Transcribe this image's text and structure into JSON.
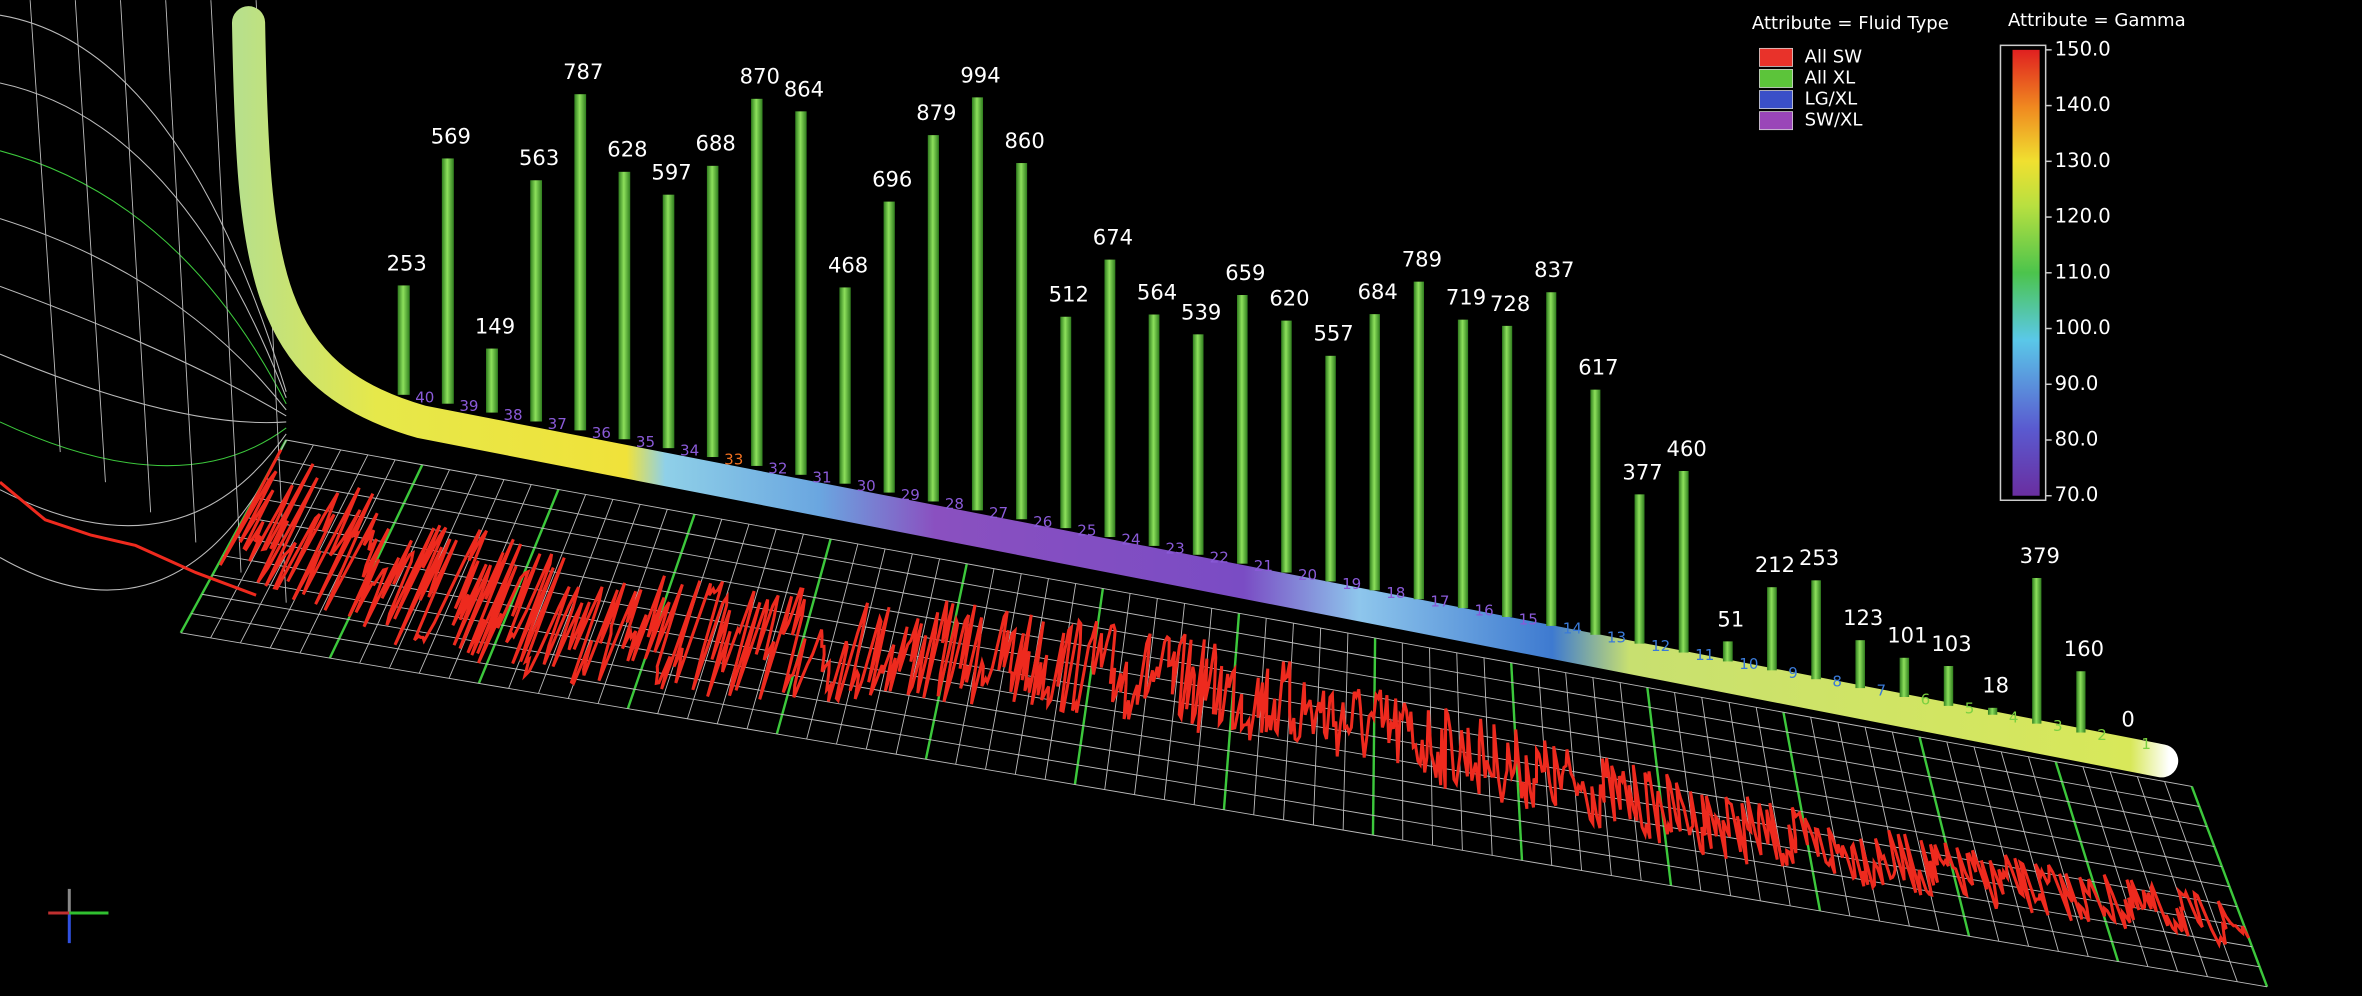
{
  "chart_data": {
    "type": "bar",
    "categories": [
      "40",
      "39",
      "38",
      "37",
      "36",
      "35",
      "34",
      "33",
      "32",
      "31",
      "30",
      "29",
      "28",
      "27",
      "26",
      "25",
      "24",
      "23",
      "22",
      "21",
      "20",
      "19",
      "18",
      "17",
      "16",
      "15",
      "14",
      "13",
      "12",
      "11",
      "10",
      "9",
      "8",
      "7",
      "6",
      "5",
      "4",
      "3",
      "2",
      "1"
    ],
    "values": [
      253,
      569,
      149,
      563,
      787,
      628,
      597,
      688,
      870,
      864,
      468,
      696,
      879,
      994,
      860,
      512,
      674,
      564,
      539,
      659,
      620,
      557,
      684,
      789,
      719,
      728,
      837,
      617,
      377,
      460,
      51,
      212,
      253,
      123,
      101,
      103,
      18,
      379,
      160,
      0
    ],
    "color": "#5cc43a",
    "legend": {
      "title": "Attribute = Fluid Type",
      "items": [
        {
          "name": "All SW",
          "color": "#e8322a"
        },
        {
          "name": "All XL",
          "color": "#5cc43a"
        },
        {
          "name": "LG/XL",
          "color": "#3a4fc8"
        },
        {
          "name": "SW/XL",
          "color": "#9a46b8"
        }
      ]
    },
    "colorbar": {
      "title": "Attribute = Gamma",
      "lim": [
        70,
        150
      ],
      "ticks": [
        {
          "value": 150,
          "label": "150.0"
        },
        {
          "value": 140,
          "label": "140.0"
        },
        {
          "value": 130,
          "label": "130.0"
        },
        {
          "value": 120,
          "label": "120.0"
        },
        {
          "value": 110,
          "label": "110.0"
        },
        {
          "value": 100,
          "label": "100.0"
        },
        {
          "value": 90,
          "label": "90.0"
        },
        {
          "value": 80,
          "label": "80.0"
        },
        {
          "value": 70,
          "label": "70.0"
        }
      ]
    }
  }
}
